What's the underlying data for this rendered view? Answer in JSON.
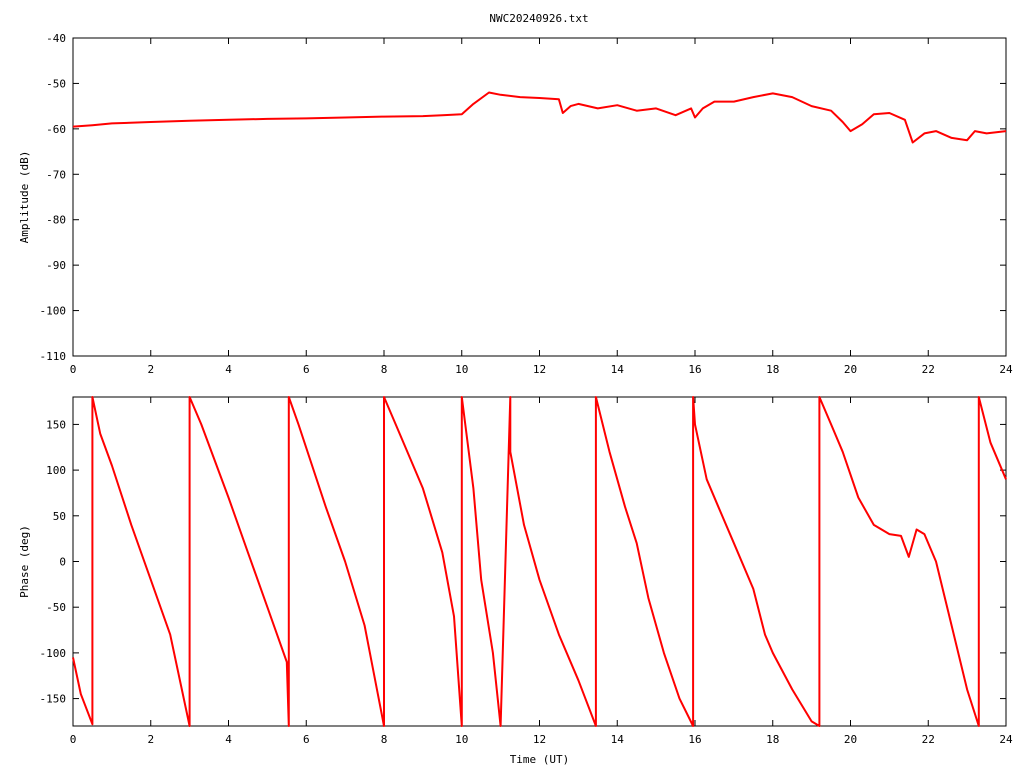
{
  "title": "NWC20240926.txt",
  "colors": {
    "series": "#ff0000",
    "axis": "#000000",
    "background": "#ffffff"
  },
  "chart_data": [
    {
      "type": "line",
      "ylabel": "Amplitude (dB)",
      "xlabel": "",
      "xlim": [
        0,
        24
      ],
      "ylim": [
        -110,
        -40
      ],
      "x_ticks": [
        0,
        2,
        4,
        6,
        8,
        10,
        12,
        14,
        16,
        18,
        20,
        22,
        24
      ],
      "y_ticks": [
        -110,
        -100,
        -90,
        -80,
        -70,
        -60,
        -50,
        -40
      ],
      "grid": false,
      "series": [
        {
          "x": [
            0,
            0.5,
            1,
            2,
            3,
            4,
            5,
            6,
            7,
            8,
            9,
            9.5,
            10,
            10.3,
            10.7,
            11,
            11.5,
            12,
            12.5,
            12.6,
            12.8,
            13,
            13.5,
            14,
            14.5,
            15,
            15.5,
            15.9,
            16,
            16.2,
            16.5,
            17,
            17.5,
            18,
            18.5,
            19,
            19.5,
            19.8,
            20,
            20.3,
            20.6,
            21,
            21.4,
            21.6,
            21.9,
            22.2,
            22.6,
            23,
            23.2,
            23.5,
            24
          ],
          "y": [
            -59.5,
            -59.2,
            -58.8,
            -58.5,
            -58.2,
            -58.0,
            -57.8,
            -57.7,
            -57.5,
            -57.3,
            -57.2,
            -57.0,
            -56.8,
            -54.5,
            -52.0,
            -52.5,
            -53.0,
            -53.2,
            -53.5,
            -56.5,
            -55.0,
            -54.5,
            -55.5,
            -54.8,
            -56.0,
            -55.5,
            -57.0,
            -55.5,
            -57.5,
            -55.5,
            -54.0,
            -54.0,
            -53.0,
            -52.2,
            -53.0,
            -55.0,
            -56.0,
            -58.5,
            -60.5,
            -59.0,
            -56.8,
            -56.5,
            -58.0,
            -63.0,
            -61.0,
            -60.5,
            -62.0,
            -62.5,
            -60.5,
            -61.0,
            -60.5
          ]
        }
      ]
    },
    {
      "type": "line",
      "ylabel": "Phase (deg)",
      "xlabel": "Time (UT)",
      "xlim": [
        0,
        24
      ],
      "ylim": [
        -180,
        180
      ],
      "x_ticks": [
        0,
        2,
        4,
        6,
        8,
        10,
        12,
        14,
        16,
        18,
        20,
        22,
        24
      ],
      "y_ticks": [
        -150,
        -100,
        -50,
        0,
        50,
        100,
        150
      ],
      "grid": false,
      "series": [
        {
          "x": [
            0,
            0.2,
            0.5,
            0.5,
            0.7,
            1,
            1.5,
            2,
            2.5,
            3.0,
            3.0,
            3.3,
            4,
            4.5,
            5,
            5.5,
            5.55,
            5.55,
            5.8,
            6.5,
            7,
            7.5,
            8.0,
            8.0,
            8.3,
            9,
            9.5,
            9.8,
            10.0,
            10.0,
            10.3,
            10.5,
            10.8,
            11.0,
            11.25,
            11.25,
            11.6,
            12,
            12.5,
            13,
            13.45,
            13.45,
            13.8,
            14.2,
            14.5,
            14.8,
            15.2,
            15.6,
            15.95,
            15.95,
            16.0,
            16.3,
            16.6,
            17,
            17.5,
            17.8,
            18,
            18.5,
            19,
            19.2,
            19.2,
            19.5,
            19.8,
            20.2,
            20.6,
            21.0,
            21.3,
            21.5,
            21.7,
            21.9,
            22.2,
            22.6,
            23.0,
            23.3,
            23.3,
            23.6,
            24.0
          ],
          "y": [
            -105,
            -145,
            -178,
            180,
            140,
            105,
            40,
            -20,
            -80,
            -180,
            180,
            150,
            70,
            10,
            -50,
            -110,
            -180,
            180,
            150,
            60,
            0,
            -70,
            -180,
            180,
            150,
            80,
            10,
            -60,
            -180,
            180,
            80,
            -20,
            -100,
            -180,
            180,
            120,
            40,
            -20,
            -80,
            -130,
            -180,
            180,
            120,
            60,
            20,
            -40,
            -100,
            -150,
            -180,
            180,
            150,
            90,
            60,
            20,
            -30,
            -80,
            -100,
            -140,
            -175,
            -180,
            180,
            150,
            120,
            70,
            40,
            30,
            28,
            5,
            35,
            30,
            0,
            -70,
            -140,
            -180,
            180,
            130,
            90
          ]
        }
      ]
    }
  ]
}
